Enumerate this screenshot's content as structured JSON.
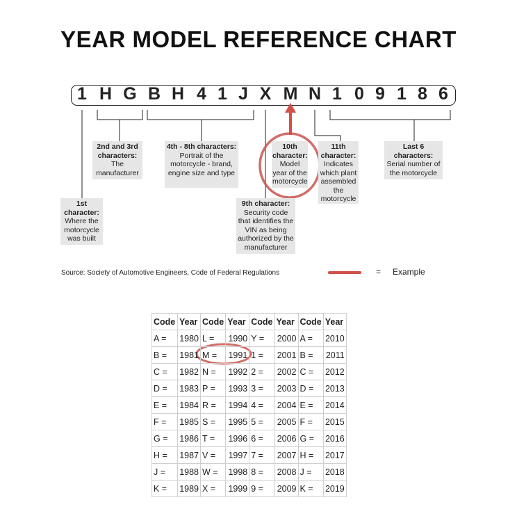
{
  "title": "YEAR MODEL REFERENCE CHART",
  "vin": [
    "1",
    "H",
    "G",
    "B",
    "H",
    "4",
    "1",
    "J",
    "X",
    "M",
    "N",
    "1",
    "0",
    "9",
    "1",
    "8",
    "6"
  ],
  "labels": {
    "first": {
      "head": "1st character:",
      "body": "Where the motorcycle was built"
    },
    "second_third": {
      "head": "2nd and 3rd characters:",
      "body": "The manufacturer"
    },
    "fourth_eighth": {
      "head": "4th - 8th characters:",
      "body": "Portrait of the motorcycle - brand, engine size and type"
    },
    "ninth": {
      "head": "9th character:",
      "body": "Security code that identifies the VIN as being authorized by the manufacturer"
    },
    "tenth": {
      "head": "10th character:",
      "body": "Model year of the motorcycle"
    },
    "eleventh": {
      "head": "11th character:",
      "body": "Indicates which plant assembled the motorcycle"
    },
    "last6": {
      "head": "Last 6 characters:",
      "body": "Serial number of the motorcycle"
    }
  },
  "source": "Source:  Society of Automotive Engineers, Code of Federal Regulations",
  "legend": {
    "equals": "=",
    "label": "Example",
    "color": "#d0504a"
  },
  "table": {
    "headers": [
      "Code",
      "Year",
      "Code",
      "Year",
      "Code",
      "Year",
      "Code",
      "Year"
    ],
    "rows": [
      [
        "A =",
        "1980",
        "L =",
        "1990",
        "Y =",
        "2000",
        "A =",
        "2010"
      ],
      [
        "B =",
        "1981",
        "M =",
        "1991",
        "1 =",
        "2001",
        "B =",
        "2011"
      ],
      [
        "C =",
        "1982",
        "N =",
        "1992",
        "2 =",
        "2002",
        "C =",
        "2012"
      ],
      [
        "D =",
        "1983",
        "P =",
        "1993",
        "3 =",
        "2003",
        "D =",
        "2013"
      ],
      [
        "E =",
        "1984",
        "R =",
        "1994",
        "4 =",
        "2004",
        "E =",
        "2014"
      ],
      [
        "F =",
        "1985",
        "S =",
        "1995",
        "5 =",
        "2005",
        "F =",
        "2015"
      ],
      [
        "G =",
        "1986",
        "T =",
        "1996",
        "6 =",
        "2006",
        "G =",
        "2016"
      ],
      [
        "H =",
        "1987",
        "V =",
        "1997",
        "7 =",
        "2007",
        "H =",
        "2017"
      ],
      [
        "J =",
        "1988",
        "W =",
        "1998",
        "8 =",
        "2008",
        "J =",
        "2018"
      ],
      [
        "K =",
        "1989",
        "X =",
        "1999",
        "9 =",
        "2009",
        "K =",
        "2019"
      ]
    ]
  }
}
